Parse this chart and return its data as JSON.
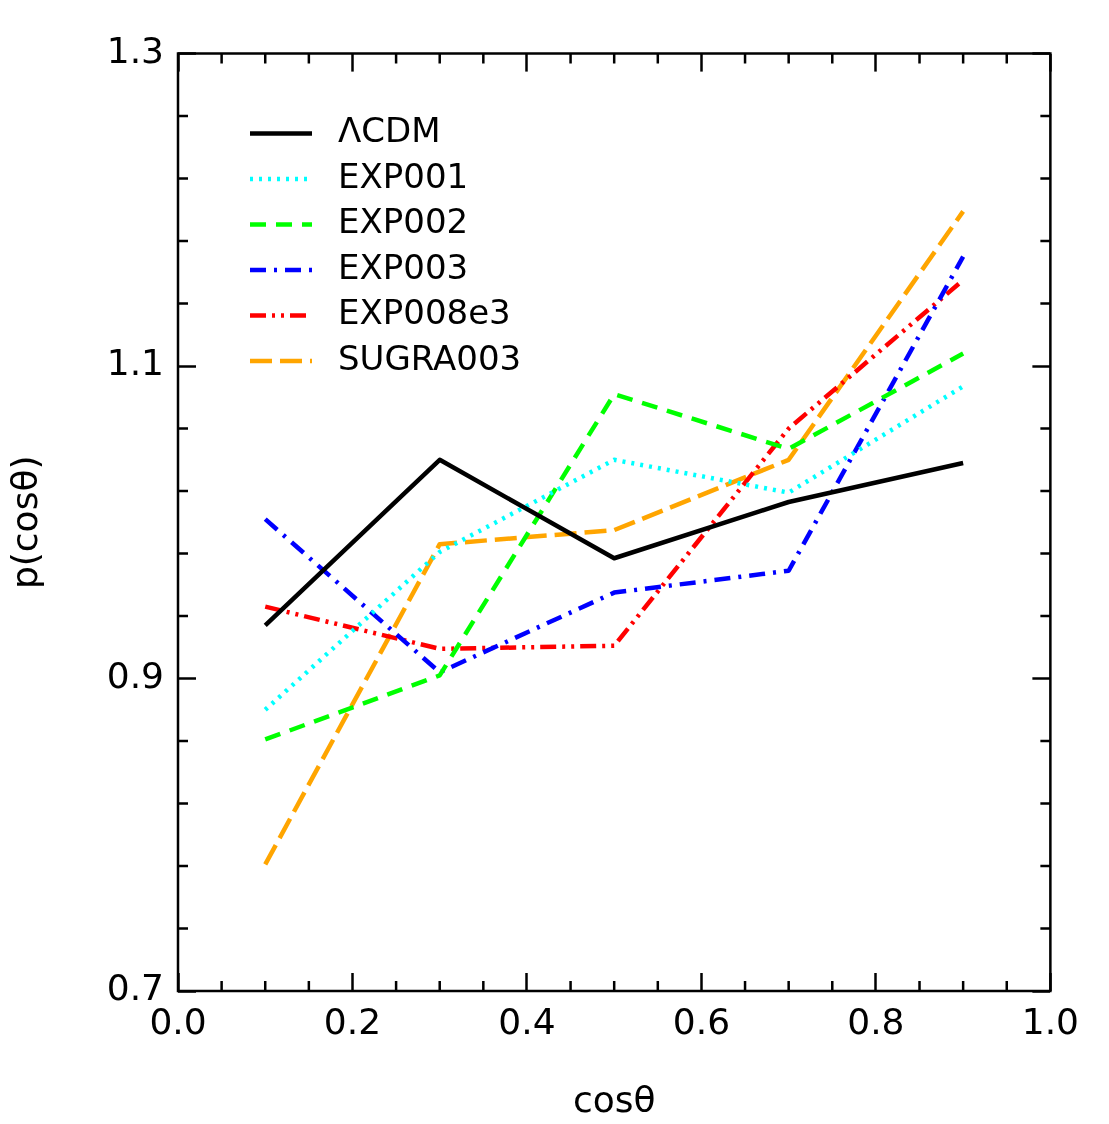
{
  "chart_data": {
    "type": "line",
    "xlabel": "cosθ",
    "ylabel": "p(cosθ)",
    "x": [
      0.1,
      0.3,
      0.5,
      0.7,
      0.9
    ],
    "xlim": [
      0,
      1
    ],
    "ylim": [
      0.7,
      1.3
    ],
    "xticks": [
      {
        "value": 0,
        "label": "0.0"
      },
      {
        "value": 0.05,
        "label": null
      },
      {
        "value": 0.1,
        "label": null
      },
      {
        "value": 0.15,
        "label": null
      },
      {
        "value": 0.2,
        "label": "0.2"
      },
      {
        "value": 0.25,
        "label": null
      },
      {
        "value": 0.3,
        "label": null
      },
      {
        "value": 0.35,
        "label": null
      },
      {
        "value": 0.4,
        "label": "0.4"
      },
      {
        "value": 0.45,
        "label": null
      },
      {
        "value": 0.5,
        "label": null
      },
      {
        "value": 0.55,
        "label": null
      },
      {
        "value": 0.6,
        "label": "0.6"
      },
      {
        "value": 0.65,
        "label": null
      },
      {
        "value": 0.7,
        "label": null
      },
      {
        "value": 0.75,
        "label": null
      },
      {
        "value": 0.8,
        "label": "0.8"
      },
      {
        "value": 0.85,
        "label": null
      },
      {
        "value": 0.9,
        "label": null
      },
      {
        "value": 0.95,
        "label": null
      },
      {
        "value": 1,
        "label": "1.0"
      }
    ],
    "yticks": [
      0.7,
      {
        "value": 0.74,
        "label": null
      },
      {
        "value": 0.78,
        "label": null
      },
      {
        "value": 0.82,
        "label": null
      },
      {
        "value": 0.86,
        "label": null
      },
      0.9,
      {
        "value": 0.94,
        "label": null
      },
      {
        "value": 0.98,
        "label": null
      },
      {
        "value": 1.02,
        "label": null
      },
      {
        "value": 1.06,
        "label": null
      },
      1.1,
      {
        "value": 1.14,
        "label": null
      },
      {
        "value": 1.18,
        "label": null
      },
      {
        "value": 1.22,
        "label": null
      },
      {
        "value": 1.26,
        "label": null
      },
      1.3
    ],
    "grid": false,
    "legend": "top left",
    "marker": "none",
    "series": [
      {
        "name": "ΛCDM",
        "color": "#000000",
        "line_style": "solid",
        "values": [
          0.934,
          1.04,
          0.977,
          1.013,
          1.038
        ]
      },
      {
        "name": "EXP001",
        "color": "#00ffff",
        "line_style": "dotted",
        "values": [
          0.88,
          0.981,
          1.04,
          1.019,
          1.087
        ]
      },
      {
        "name": "EXP002",
        "color": "#00ff00",
        "line_style": "dashed",
        "values": [
          0.861,
          0.902,
          1.082,
          1.047,
          1.108
        ]
      },
      {
        "name": "EXP003",
        "color": "#0000ff",
        "line_style": "dashdot",
        "values": [
          1.002,
          0.904,
          0.955,
          0.969,
          1.17
        ]
      },
      {
        "name": "EXP008e3",
        "color": "#ff0000",
        "line_style": "dashdotdot",
        "values": [
          0.946,
          0.919,
          0.921,
          1.06,
          1.155
        ]
      },
      {
        "name": "SUGRA003",
        "color": "#ffa500",
        "line_style": "longdash",
        "values": [
          0.781,
          0.986,
          0.995,
          1.04,
          1.199
        ]
      }
    ]
  }
}
